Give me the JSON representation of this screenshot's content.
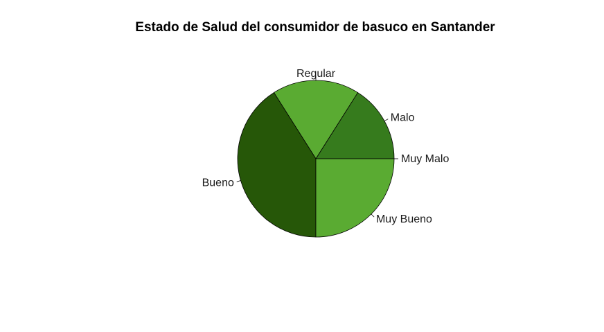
{
  "chart_data": {
    "type": "pie",
    "title": "Estado de Salud del consumidor de basuco en Santander",
    "categories": [
      "Muy Malo",
      "Malo",
      "Regular",
      "Bueno",
      "Muy Bueno"
    ],
    "values": [
      0,
      16,
      18,
      41,
      25
    ],
    "colors": [
      "#5aab32",
      "#367b1d",
      "#5aab32",
      "#265708",
      "#5aab32"
    ],
    "start_angle_deg": 0,
    "direction": "counterclockwise"
  }
}
